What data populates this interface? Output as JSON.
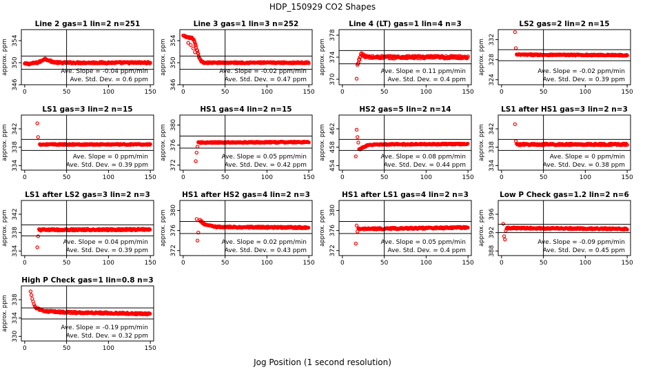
{
  "title": "HDP_150929  CO2 Shapes",
  "xlabel": "Jog Position (1 second resolution)",
  "ylabel": "approx. ppm",
  "colors": {
    "points": "#ff0000",
    "lines": "#000000"
  },
  "chart_data": [
    {
      "type": "scatter",
      "title": "Line 2 gas=1 lin=2 n=251",
      "ylim": [
        346,
        356
      ],
      "yticks": [
        346,
        350,
        354
      ],
      "xlim": [
        -4,
        154
      ],
      "xticks": [
        0,
        50,
        100,
        150
      ],
      "hlines": [
        351.2,
        348.8
      ],
      "vline": 50,
      "slope_label": "Ave. Slope = -0.04  ppm/min",
      "sd_label": "Ave. Std. Dev. = 0.6  ppm",
      "series": {
        "x_start": 0,
        "x_end": 150,
        "points": [
          [
            0,
            349.8
          ],
          [
            5,
            349.8
          ],
          [
            10,
            349.9
          ],
          [
            15,
            350.0
          ],
          [
            20,
            350.3
          ],
          [
            22,
            350.6
          ],
          [
            25,
            350.7
          ],
          [
            28,
            350.5
          ],
          [
            32,
            350.2
          ],
          [
            40,
            350.0
          ],
          [
            50,
            350.0
          ],
          [
            150,
            350.0
          ]
        ],
        "noise": 0.15,
        "outliers": []
      }
    },
    {
      "type": "scatter",
      "title": "Line 3 gas=1 lin=3 n=252",
      "ylim": [
        346,
        356
      ],
      "yticks": [
        346,
        350,
        354
      ],
      "xlim": [
        -4,
        154
      ],
      "xticks": [
        0,
        50,
        100,
        150
      ],
      "hlines": [
        351.2,
        348.8
      ],
      "vline": 50,
      "slope_label": "Ave. Slope = -0.02  ppm/min",
      "sd_label": "Ave. Std. Dev. = 0.47  ppm",
      "series": {
        "x_start": 0,
        "x_end": 150,
        "points": [
          [
            0,
            354.9
          ],
          [
            5,
            354.6
          ],
          [
            10,
            354.5
          ],
          [
            13,
            354.0
          ],
          [
            15,
            353.0
          ],
          [
            17,
            352.0
          ],
          [
            19,
            351.0
          ],
          [
            21,
            350.3
          ],
          [
            25,
            350.0
          ],
          [
            150,
            350.0
          ]
        ],
        "noise": 0.12,
        "outliers": [
          [
            6,
            353.6
          ],
          [
            9,
            353.2
          ],
          [
            12,
            352.6
          ],
          [
            14,
            351.9
          ]
        ]
      }
    },
    {
      "type": "scatter",
      "title": "Line 4 (LT) gas=1 lin=4 n=3",
      "ylim": [
        369,
        379
      ],
      "yticks": [
        370,
        374,
        378
      ],
      "xlim": [
        -4,
        154
      ],
      "xticks": [
        0,
        50,
        100,
        150
      ],
      "hlines": [
        375.2,
        372.8
      ],
      "vline": 50,
      "slope_label": "Ave. Slope = 0.11  ppm/min",
      "sd_label": "Ave. Std. Dev. = 0.4  ppm",
      "series": {
        "x_start": 18,
        "x_end": 150,
        "points": [
          [
            18,
            372.5
          ],
          [
            20,
            373.5
          ],
          [
            22,
            374.6
          ],
          [
            25,
            374.3
          ],
          [
            30,
            374.0
          ],
          [
            150,
            374.0
          ]
        ],
        "noise": 0.25,
        "outliers": [
          [
            17,
            370.1
          ]
        ]
      }
    },
    {
      "type": "scatter",
      "title": "LS2 gas=2 lin=2 n=15",
      "ylim": [
        323,
        334
      ],
      "yticks": [
        324,
        328,
        332
      ],
      "xlim": [
        -4,
        154
      ],
      "xticks": [
        0,
        50,
        100,
        150
      ],
      "hlines": [
        330.0,
        327.8
      ],
      "vline": 50,
      "slope_label": "Ave. Slope = -0.02  ppm/min",
      "sd_label": "Ave. Std. Dev. = 0.39  ppm",
      "series": {
        "x_start": 18,
        "x_end": 150,
        "points": [
          [
            18,
            329.0
          ],
          [
            150,
            328.9
          ]
        ],
        "noise": 0.12,
        "outliers": [
          [
            16,
            333.5
          ],
          [
            17,
            330.3
          ]
        ]
      }
    },
    {
      "type": "scatter",
      "title": "LS1 gas=3 lin=2 n=15",
      "ylim": [
        333,
        345
      ],
      "yticks": [
        334,
        338,
        342
      ],
      "xlim": [
        -4,
        154
      ],
      "xticks": [
        0,
        50,
        100,
        150
      ],
      "hlines": [
        339.7,
        337.3
      ],
      "vline": 50,
      "slope_label": "Ave. Slope = 0  ppm/min",
      "sd_label": "Ave. Std. Dev. = 0.39  ppm",
      "series": {
        "x_start": 18,
        "x_end": 150,
        "points": [
          [
            18,
            338.6
          ],
          [
            150,
            338.6
          ]
        ],
        "noise": 0.12,
        "outliers": [
          [
            15,
            343.2
          ],
          [
            16,
            340.2
          ]
        ]
      }
    },
    {
      "type": "scatter",
      "title": "HS1 gas=4 lin=2 n=15",
      "ylim": [
        371,
        382
      ],
      "yticks": [
        372,
        376,
        380
      ],
      "xlim": [
        -4,
        154
      ],
      "xticks": [
        0,
        50,
        100,
        150
      ],
      "hlines": [
        377.8,
        375.4
      ],
      "vline": 50,
      "slope_label": "Ave. Slope = 0.05  ppm/min",
      "sd_label": "Ave. Std. Dev. = 0.42  ppm",
      "series": {
        "x_start": 18,
        "x_end": 150,
        "points": [
          [
            18,
            376.5
          ],
          [
            150,
            376.6
          ]
        ],
        "noise": 0.12,
        "outliers": [
          [
            15,
            372.8
          ],
          [
            16,
            374.5
          ],
          [
            17,
            375.7
          ]
        ]
      }
    },
    {
      "type": "scatter",
      "title": "HS2 gas=5 lin=2 n=14",
      "ylim": [
        453,
        465
      ],
      "yticks": [
        454,
        458,
        462
      ],
      "xlim": [
        -4,
        154
      ],
      "xticks": [
        0,
        50,
        100,
        150
      ],
      "hlines": [
        459.7,
        457.3
      ],
      "vline": 50,
      "slope_label": "Ave. Slope = 0.08  ppm/min",
      "sd_label": "Ave. Std. Dev. = 0.44  ppm",
      "series": {
        "x_start": 20,
        "x_end": 150,
        "points": [
          [
            20,
            457.5
          ],
          [
            25,
            458.0
          ],
          [
            30,
            458.4
          ],
          [
            40,
            458.6
          ],
          [
            150,
            458.7
          ]
        ],
        "noise": 0.12,
        "outliers": [
          [
            16,
            456.0
          ],
          [
            17,
            461.8
          ],
          [
            18,
            460.2
          ],
          [
            19,
            459.0
          ]
        ]
      }
    },
    {
      "type": "scatter",
      "title": "LS1 after HS1 gas=3 lin=2 n=3",
      "ylim": [
        333,
        345
      ],
      "yticks": [
        334,
        338,
        342
      ],
      "xlim": [
        -4,
        154
      ],
      "xticks": [
        0,
        50,
        100,
        150
      ],
      "hlines": [
        339.7,
        337.3
      ],
      "vline": 50,
      "slope_label": "Ave. Slope = 0  ppm/min",
      "sd_label": "Ave. Std. Dev. = 0.38  ppm",
      "series": {
        "x_start": 18,
        "x_end": 150,
        "points": [
          [
            18,
            338.6
          ],
          [
            150,
            338.6
          ]
        ],
        "noise": 0.18,
        "outliers": [
          [
            16,
            343.0
          ],
          [
            17,
            339.3
          ]
        ]
      }
    },
    {
      "type": "scatter",
      "title": "LS1 after LS2 gas=3 lin=2 n=3",
      "ylim": [
        333,
        345
      ],
      "yticks": [
        334,
        338,
        342
      ],
      "xlim": [
        -4,
        154
      ],
      "xticks": [
        0,
        50,
        100,
        150
      ],
      "hlines": [
        339.7,
        337.3
      ],
      "vline": 50,
      "slope_label": "Ave. Slope = 0.04  ppm/min",
      "sd_label": "Ave. Std. Dev. = 0.39  ppm",
      "series": {
        "x_start": 17,
        "x_end": 150,
        "points": [
          [
            17,
            338.6
          ],
          [
            150,
            338.7
          ]
        ],
        "noise": 0.18,
        "outliers": [
          [
            15,
            334.8
          ],
          [
            16,
            337.2
          ]
        ]
      }
    },
    {
      "type": "scatter",
      "title": "HS1 after HS2 gas=4 lin=2 n=3",
      "ylim": [
        371,
        382
      ],
      "yticks": [
        372,
        376,
        380
      ],
      "xlim": [
        -4,
        154
      ],
      "xticks": [
        0,
        50,
        100,
        150
      ],
      "hlines": [
        377.8,
        375.4
      ],
      "vline": 50,
      "slope_label": "Ave. Slope = 0.02  ppm/min",
      "sd_label": "Ave. Std. Dev. = 0.43  ppm",
      "series": {
        "x_start": 20,
        "x_end": 150,
        "points": [
          [
            20,
            378.0
          ],
          [
            25,
            377.3
          ],
          [
            30,
            377.0
          ],
          [
            40,
            376.7
          ],
          [
            150,
            376.6
          ]
        ],
        "noise": 0.15,
        "outliers": [
          [
            16,
            378.3
          ],
          [
            17,
            374.0
          ],
          [
            18,
            375.6
          ]
        ]
      }
    },
    {
      "type": "scatter",
      "title": "HS1 after LS1 gas=4 lin=2 n=3",
      "ylim": [
        371,
        382
      ],
      "yticks": [
        372,
        376,
        380
      ],
      "xlim": [
        -4,
        154
      ],
      "xticks": [
        0,
        50,
        100,
        150
      ],
      "hlines": [
        377.8,
        375.4
      ],
      "vline": 50,
      "slope_label": "Ave. Slope = 0.05  ppm/min",
      "sd_label": "Ave. Std. Dev. = 0.4  ppm",
      "series": {
        "x_start": 19,
        "x_end": 150,
        "points": [
          [
            19,
            376.3
          ],
          [
            150,
            376.6
          ]
        ],
        "noise": 0.15,
        "outliers": [
          [
            16,
            373.4
          ],
          [
            17,
            377.0
          ],
          [
            18,
            375.8
          ]
        ]
      }
    },
    {
      "type": "scatter",
      "title": "Low P Check gas=1.2 lin=2 n=6",
      "ylim": [
        387,
        399
      ],
      "yticks": [
        388,
        392,
        396
      ],
      "xlim": [
        -4,
        154
      ],
      "xticks": [
        0,
        50,
        100,
        150
      ],
      "hlines": [
        393.8,
        392.0
      ],
      "vline": 50,
      "slope_label": "Ave. Slope = -0.09  ppm/min",
      "sd_label": "Ave. Std. Dev. = 0.45  ppm",
      "series": {
        "x_start": 6,
        "x_end": 150,
        "points": [
          [
            6,
            393.0
          ],
          [
            150,
            392.8
          ]
        ],
        "noise": 0.15,
        "outliers": [
          [
            2,
            393.9
          ],
          [
            3,
            391.2
          ],
          [
            4,
            390.5
          ],
          [
            5,
            392.4
          ]
        ]
      }
    },
    {
      "type": "scatter",
      "title": "High P Check gas=1 lin=0.8 n=3",
      "ylim": [
        329,
        341
      ],
      "yticks": [
        330,
        334,
        338
      ],
      "xlim": [
        -4,
        154
      ],
      "xticks": [
        0,
        50,
        100,
        150
      ],
      "hlines": [
        336.2,
        333.8
      ],
      "vline": 50,
      "slope_label": "Ave. Slope = -0.19  ppm/min",
      "sd_label": "Ave. Std. Dev. = 0.32  ppm",
      "series": {
        "x_start": 14,
        "x_end": 150,
        "points": [
          [
            14,
            336.2
          ],
          [
            20,
            335.7
          ],
          [
            30,
            335.4
          ],
          [
            60,
            335.2
          ],
          [
            100,
            335.1
          ],
          [
            150,
            334.9
          ]
        ],
        "noise": 0.18,
        "outliers": [
          [
            7,
            339.8
          ],
          [
            8,
            339.0
          ],
          [
            9,
            338.2
          ],
          [
            10,
            337.6
          ],
          [
            11,
            337.0
          ],
          [
            12,
            336.6
          ],
          [
            13,
            336.3
          ]
        ]
      }
    }
  ]
}
